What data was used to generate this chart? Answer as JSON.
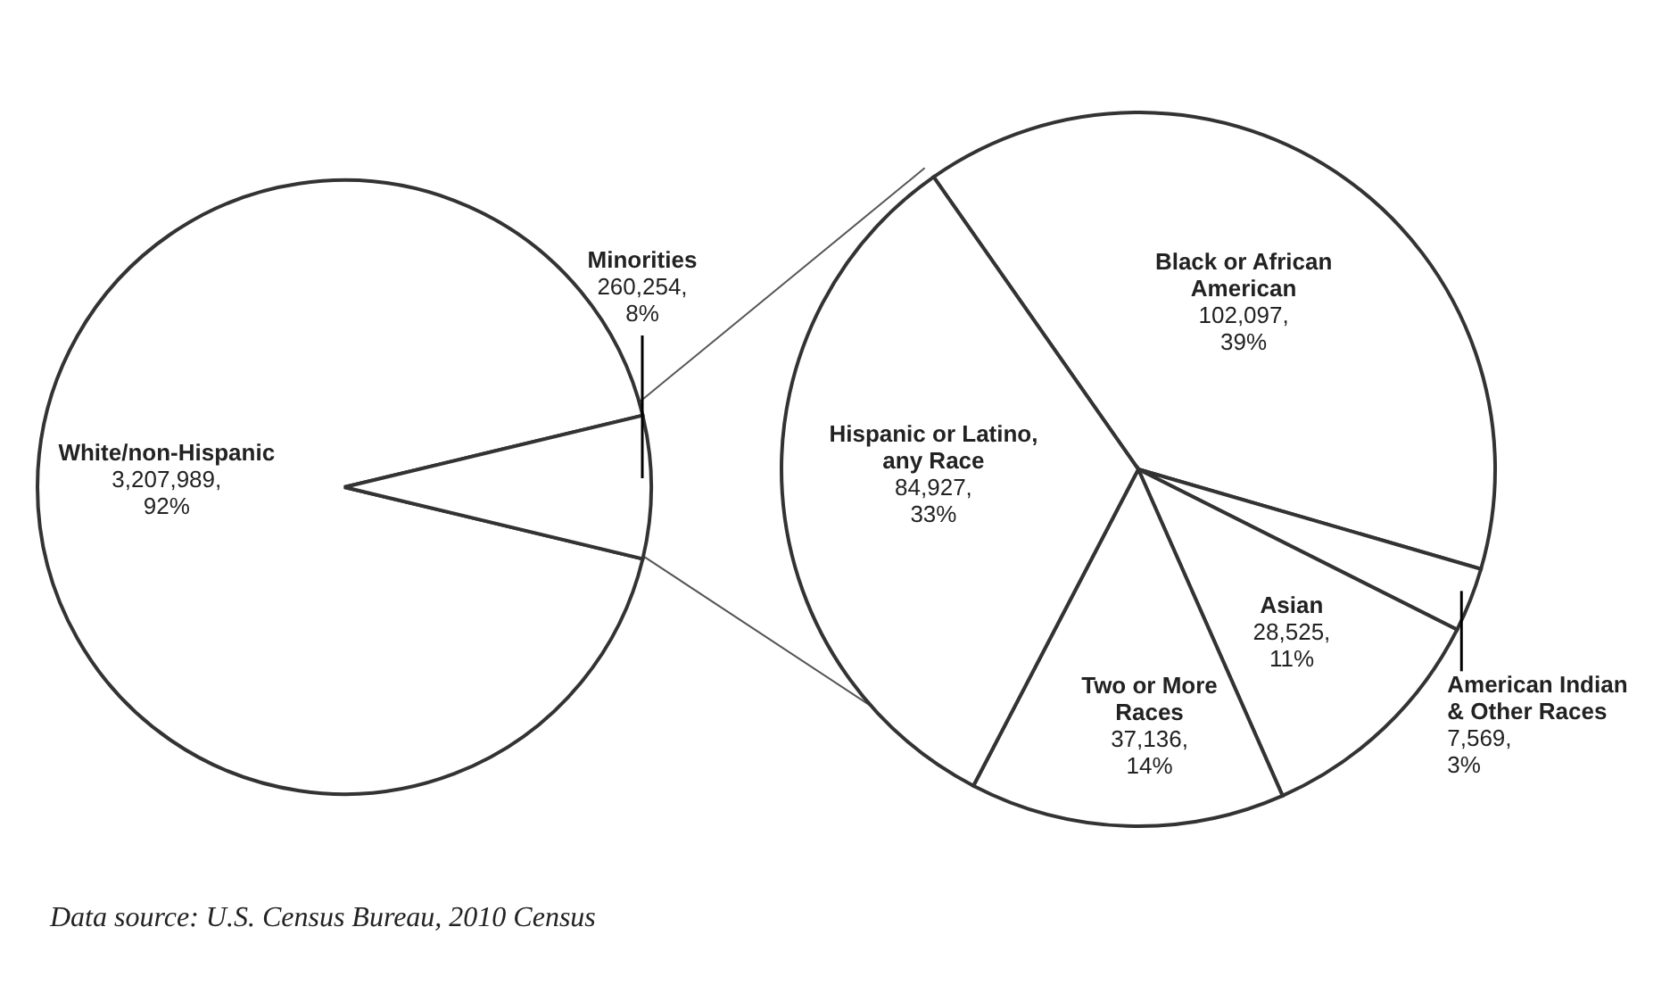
{
  "chart_data": [
    {
      "type": "pie",
      "categories": [
        "White/non-Hispanic",
        "Minorities"
      ],
      "values": [
        3207989,
        260254
      ],
      "value_labels": [
        "3,207,989, 92%",
        "260,254, 8%"
      ],
      "colors": [
        "#ffffff",
        "#ffffff"
      ],
      "annotations": [
        "Data source: U.S. Census Bureau, 2010 Census"
      ]
    },
    {
      "type": "pie",
      "categories": [
        "Black or African American",
        "American Indian & Other Races",
        "Asian",
        "Two or More Races",
        "Hispanic or Latino, any Race"
      ],
      "values": [
        102097,
        7569,
        28525,
        37136,
        84927
      ],
      "value_labels": [
        "102,097, 39%",
        "7,569, 3%",
        "28,525, 11%",
        "37,136, 14%",
        "84,927, 33%"
      ],
      "colors": [
        "#ffffff",
        "#ffffff",
        "#ffffff",
        "#ffffff",
        "#ffffff"
      ]
    }
  ]
}
